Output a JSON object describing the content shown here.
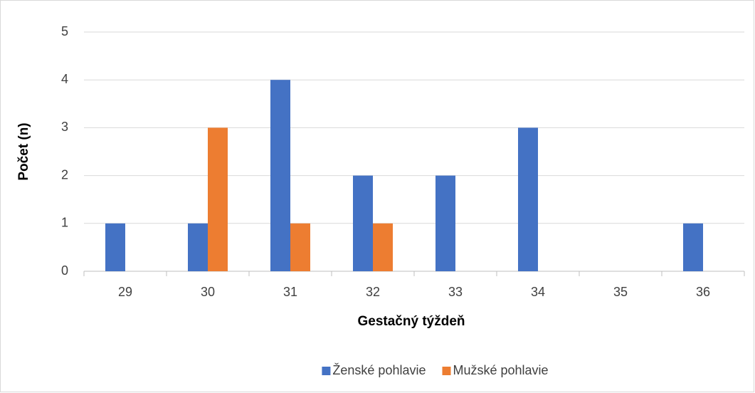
{
  "chart_data": {
    "type": "bar",
    "x_label": "Gestačný týždeň",
    "y_label": "Počet (n)",
    "categories": [
      "29",
      "30",
      "31",
      "32",
      "33",
      "34",
      "35",
      "36"
    ],
    "series": [
      {
        "name": "Ženské pohlavie",
        "color": "#4472c4",
        "values": [
          1,
          1,
          4,
          2,
          2,
          3,
          0,
          1
        ]
      },
      {
        "name": "Mužské pohlavie",
        "color": "#ed7d31",
        "values": [
          0,
          3,
          1,
          1,
          0,
          0,
          0,
          0
        ]
      }
    ],
    "ylim": [
      0,
      5
    ],
    "yticks": [
      0,
      1,
      2,
      3,
      4,
      5
    ],
    "grid": true,
    "legend": "bottom"
  }
}
